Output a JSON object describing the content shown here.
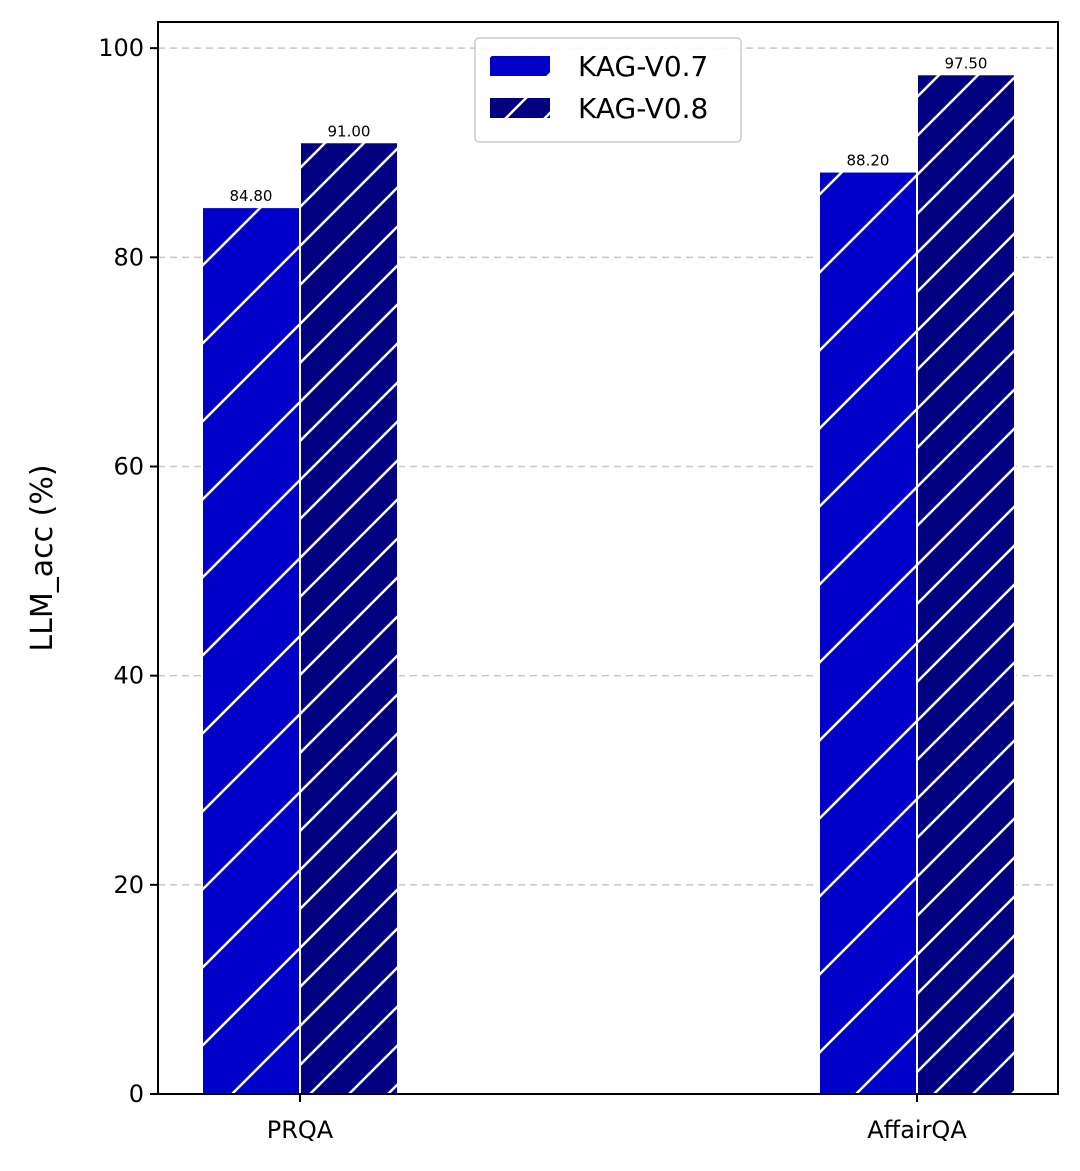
{
  "chart_data": {
    "type": "bar",
    "title": "",
    "xlabel": "",
    "ylabel": "LLM_acc (%)",
    "categories": [
      "PRQA",
      "AffairQA"
    ],
    "series": [
      {
        "name": "KAG-V0.7",
        "values": [
          84.8,
          88.2
        ],
        "color": "#0000c8",
        "hatch": "/"
      },
      {
        "name": "KAG-V0.8",
        "values": [
          91.0,
          97.5
        ],
        "color": "#000080",
        "hatch": "//"
      }
    ],
    "value_labels": [
      [
        "84.80",
        "88.20"
      ],
      [
        "91.00",
        "97.50"
      ]
    ],
    "ylim": [
      0,
      102.5
    ],
    "yticks": [
      0,
      20,
      40,
      60,
      80,
      100
    ],
    "grid": "horizontal-dashed",
    "legend_position": "top-center"
  }
}
